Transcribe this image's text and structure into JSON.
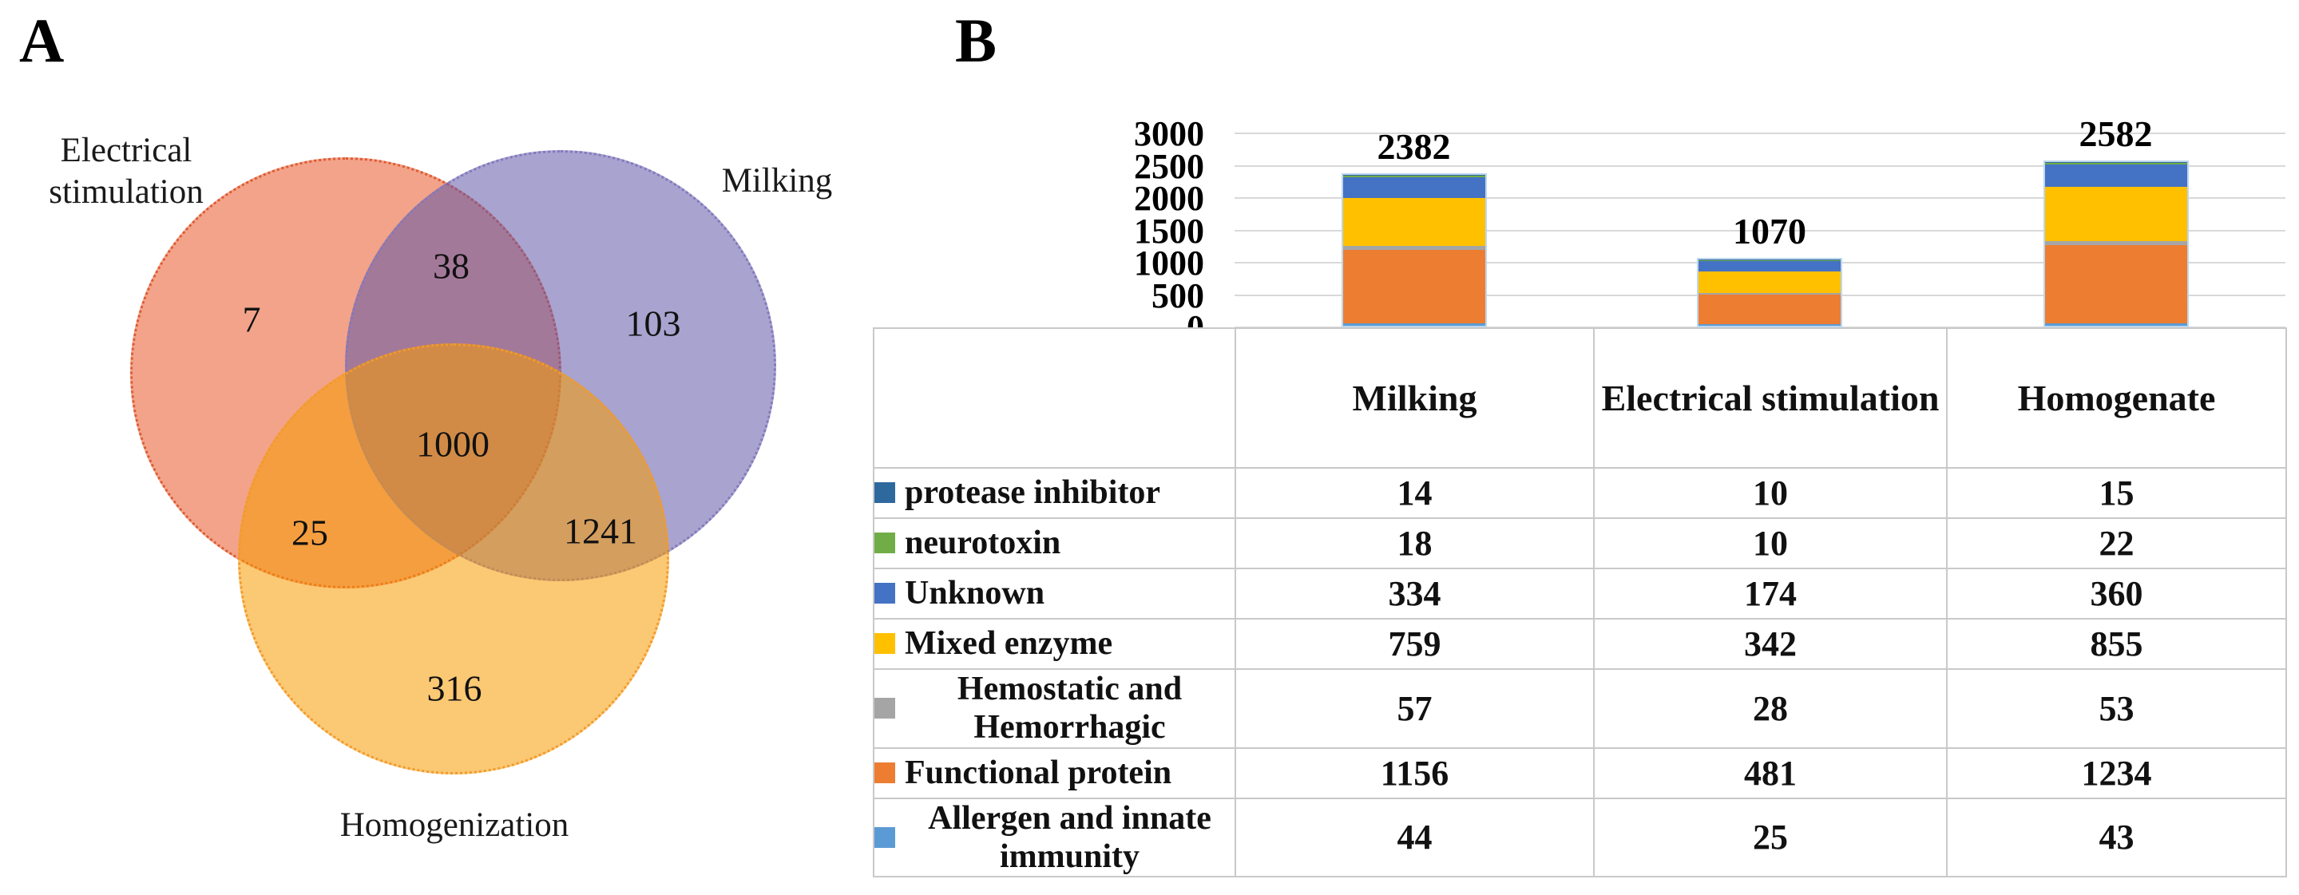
{
  "figure": {
    "panel_a_label": "A",
    "panel_b_label": "B"
  },
  "venn": {
    "sets": [
      {
        "id": "electrical",
        "label": "Electrical stimulation",
        "fill": "rgba(231,88,42,0.55)",
        "border": "#dd5a31"
      },
      {
        "id": "milking",
        "label": "Milking",
        "fill": "rgba(98,88,168,0.55)",
        "border": "#8278bd"
      },
      {
        "id": "homogenization",
        "label": "Homogenization",
        "fill": "rgba(248,155,2,0.55)",
        "border": "#f19a2b"
      }
    ],
    "regions": [
      {
        "id": "electrical_only",
        "value": "7"
      },
      {
        "id": "electrical_milking",
        "value": "38"
      },
      {
        "id": "milking_only",
        "value": "103"
      },
      {
        "id": "center_all",
        "value": "1000"
      },
      {
        "id": "electrical_homogenization",
        "value": "25"
      },
      {
        "id": "milking_homogenization",
        "value": "1241"
      },
      {
        "id": "homogenization_only",
        "value": "316"
      }
    ]
  },
  "chart_data": {
    "type": "bar",
    "stacked": true,
    "title": "",
    "xlabel": "",
    "ylabel": "",
    "categories": [
      "Milking",
      "Electrical stimulation",
      "Homogenate"
    ],
    "series": [
      {
        "name": "protease inhibitor",
        "color": "#2e699e",
        "values": [
          14,
          10,
          15
        ]
      },
      {
        "name": "neurotoxin",
        "color": "#70ad47",
        "values": [
          18,
          10,
          22
        ]
      },
      {
        "name": "Unknown",
        "color": "#4472c4",
        "values": [
          334,
          174,
          360
        ]
      },
      {
        "name": "Mixed enzyme",
        "color": "#ffc000",
        "values": [
          759,
          342,
          855
        ]
      },
      {
        "name": "Hemostatic and Hemorrhagic",
        "color": "#a5a5a5",
        "values": [
          57,
          28,
          53
        ]
      },
      {
        "name": "Functional protein",
        "color": "#ed7d31",
        "values": [
          1156,
          481,
          1234
        ]
      },
      {
        "name": "Allergen and innate immunity",
        "color": "#5b9bd5",
        "values": [
          44,
          25,
          43
        ]
      }
    ],
    "totals": [
      "2382",
      "1070",
      "2582"
    ],
    "y_ticks": [
      0,
      500,
      1000,
      1500,
      2000,
      2500,
      3000
    ],
    "ylim": [
      0,
      3000
    ],
    "grid": true,
    "legend_position": "table-left-column",
    "stack_order_bottom_to_top": [
      "Allergen and innate immunity",
      "Functional protein",
      "Hemostatic and Hemorrhagic",
      "Mixed enzyme",
      "Unknown",
      "neurotoxin",
      "protease inhibitor"
    ],
    "bar_outline_color": "#bdd7ee",
    "gridline_color": "#d9d9d9"
  }
}
